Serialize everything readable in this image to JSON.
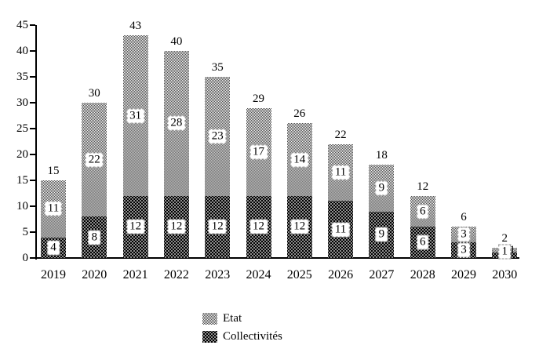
{
  "chart_data": {
    "type": "bar",
    "stacked": true,
    "title": "",
    "xlabel": "",
    "ylabel": "",
    "categories": [
      "2019",
      "2020",
      "2021",
      "2022",
      "2023",
      "2024",
      "2025",
      "2026",
      "2027",
      "2028",
      "2029",
      "2030"
    ],
    "series": [
      {
        "name": "Collectivités",
        "position": "bottom",
        "values": [
          4,
          8,
          12,
          12,
          12,
          12,
          12,
          11,
          9,
          6,
          3,
          1
        ]
      },
      {
        "name": "Etat",
        "position": "top",
        "values": [
          11,
          22,
          31,
          28,
          23,
          17,
          14,
          11,
          9,
          6,
          3,
          1
        ]
      }
    ],
    "totals": [
      15,
      30,
      43,
      40,
      35,
      29,
      26,
      22,
      18,
      12,
      6,
      2
    ],
    "ylim": [
      0,
      45
    ],
    "yticks": [
      0,
      5,
      10,
      15,
      20,
      25,
      30,
      35,
      40,
      45
    ],
    "grid": false,
    "legend_position": "bottom-center",
    "etat_label_outside_for": "2030"
  },
  "legend": {
    "items": [
      {
        "label": "Etat",
        "swatch": "gray-checker"
      },
      {
        "label": "Collectivités",
        "swatch": "black-dot-grid"
      }
    ]
  },
  "colors": {
    "etat_average": "#9a9a9a",
    "collectivites": "#000000",
    "axis": "#000000",
    "text": "#000000",
    "value_box_bg": "#ffffff",
    "value_box_border": "#8f8f8f"
  }
}
